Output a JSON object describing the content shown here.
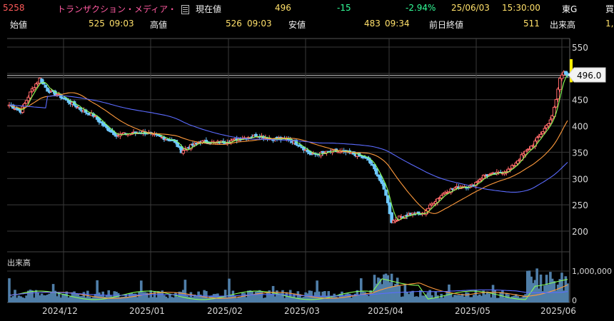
{
  "header": {
    "code": "5258",
    "name": "トランザクション・メディア・",
    "current_label": "現在値",
    "current_value": "496",
    "change": "-15",
    "change_pct": "-2.94%",
    "date": "25/06/03",
    "time": "15:30:00",
    "market": "東G",
    "buy_label": "買"
  },
  "ohlc": {
    "open_label": "始値",
    "open_value": "525",
    "open_time": "09:03",
    "high_label": "高値",
    "high_value": "526",
    "high_time": "09:03",
    "low_label": "安値",
    "low_value": "483",
    "low_time": "09:34",
    "prev_close_label": "前日終値",
    "prev_close_value": "511",
    "volume_label": "出来高",
    "volume_value_partial": "1,"
  },
  "chart_data": {
    "type": "candlestick",
    "y_ticks": [
      "550",
      "500",
      "450",
      "400",
      "350",
      "300",
      "250",
      "200"
    ],
    "ylim": [
      200,
      550
    ],
    "price_tag": "496.0",
    "volume_label": "出来高",
    "volume_tick": "1,000,000",
    "volume_zero": "0",
    "x_ticks": [
      "2024/12",
      "2025/01",
      "2025/02",
      "2025/03",
      "2025/04",
      "2025/05",
      "2025/06"
    ],
    "colors": {
      "up": "#ff6a6a",
      "down": "#6ec9ff",
      "ma_short": "#88ff55",
      "ma_mid": "#ff9a3c",
      "ma_long": "#5b6bff",
      "last_marker": "#ffee00"
    }
  }
}
